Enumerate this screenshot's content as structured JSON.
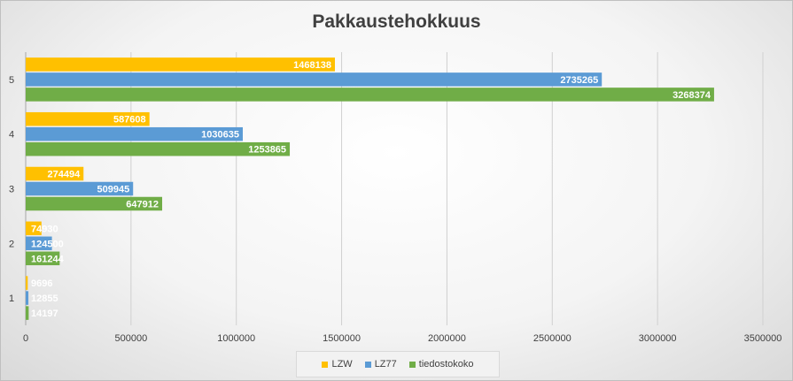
{
  "chart_data": {
    "type": "bar",
    "orientation": "horizontal",
    "title": "Pakkaustehokkuus",
    "categories": [
      "1",
      "2",
      "3",
      "4",
      "5"
    ],
    "series": [
      {
        "name": "LZW",
        "color": "#ffc000",
        "values": [
          9696,
          74930,
          274494,
          587608,
          1468138
        ]
      },
      {
        "name": "LZ77",
        "color": "#5b9bd5",
        "values": [
          12855,
          124500,
          509945,
          1030635,
          2735265
        ]
      },
      {
        "name": "tiedostokoko",
        "color": "#70ad47",
        "values": [
          14197,
          161244,
          647912,
          1253865,
          3268374
        ]
      }
    ],
    "xlim": [
      0,
      3500000
    ],
    "xticks": [
      0,
      500000,
      1000000,
      1500000,
      2000000,
      2500000,
      3000000,
      3500000
    ],
    "grid": true,
    "legend_position": "bottom",
    "data_labels": true
  }
}
